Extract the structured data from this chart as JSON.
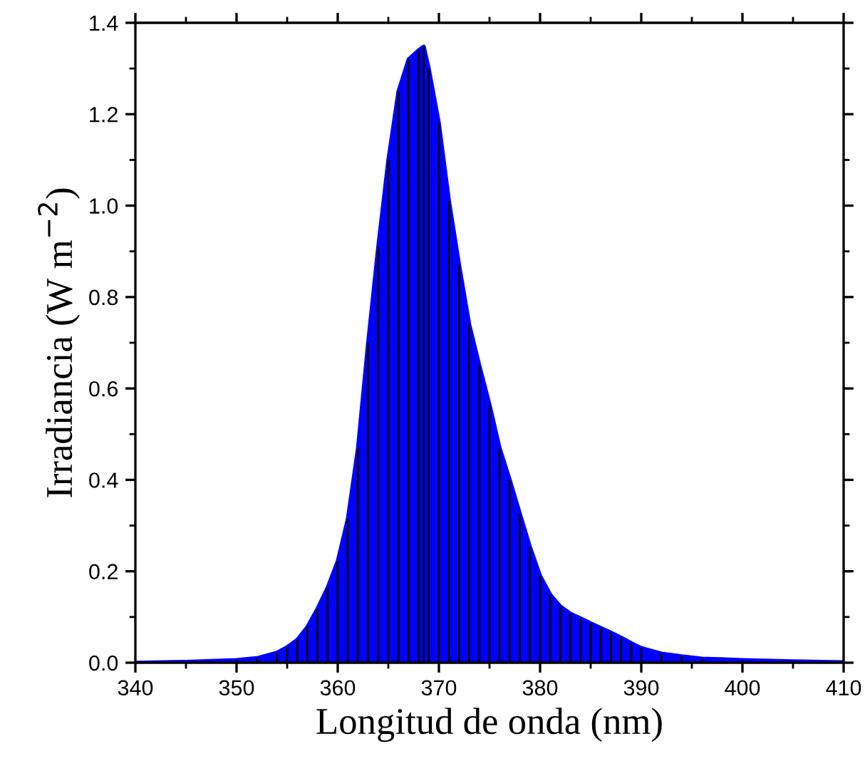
{
  "chart_data": {
    "type": "area",
    "xlabel": "Longitud de onda (nm)",
    "ylabel": "Irradiancia (W m$^{−2}$)",
    "xlim": [
      340,
      410
    ],
    "ylim": [
      0,
      1.4
    ],
    "xticks": [
      340,
      350,
      360,
      370,
      380,
      390,
      400,
      410
    ],
    "yticks": [
      {
        "value": 0,
        "label": "0.0"
      },
      0.2,
      0.4,
      0.6,
      0.8,
      {
        "value": 1,
        "label": "1.0"
      },
      1.2,
      1.4
    ],
    "x": [
      340,
      345,
      350,
      352,
      354,
      355,
      356,
      357,
      358,
      359,
      360,
      361,
      362,
      363,
      364,
      365,
      366,
      367,
      368,
      368.5,
      369,
      370,
      371,
      372,
      373,
      374,
      375,
      376,
      377,
      378,
      379,
      380,
      381,
      382,
      383,
      384,
      385,
      386,
      387,
      388,
      389,
      390,
      392,
      394,
      396,
      400,
      405,
      410
    ],
    "series": [
      {
        "color": "#0000ff",
        "values": [
          0.0,
          0.002,
          0.006,
          0.01,
          0.022,
          0.034,
          0.05,
          0.078,
          0.118,
          0.164,
          0.222,
          0.315,
          0.47,
          0.7,
          0.91,
          1.1,
          1.25,
          1.32,
          1.34,
          1.348,
          1.3,
          1.18,
          1.01,
          0.87,
          0.74,
          0.65,
          0.565,
          0.47,
          0.4,
          0.326,
          0.253,
          0.19,
          0.149,
          0.123,
          0.107,
          0.097,
          0.086,
          0.076,
          0.066,
          0.055,
          0.043,
          0.032,
          0.02,
          0.014,
          0.009,
          0.006,
          0.003,
          0.001
        ]
      }
    ],
    "legend": false
  }
}
